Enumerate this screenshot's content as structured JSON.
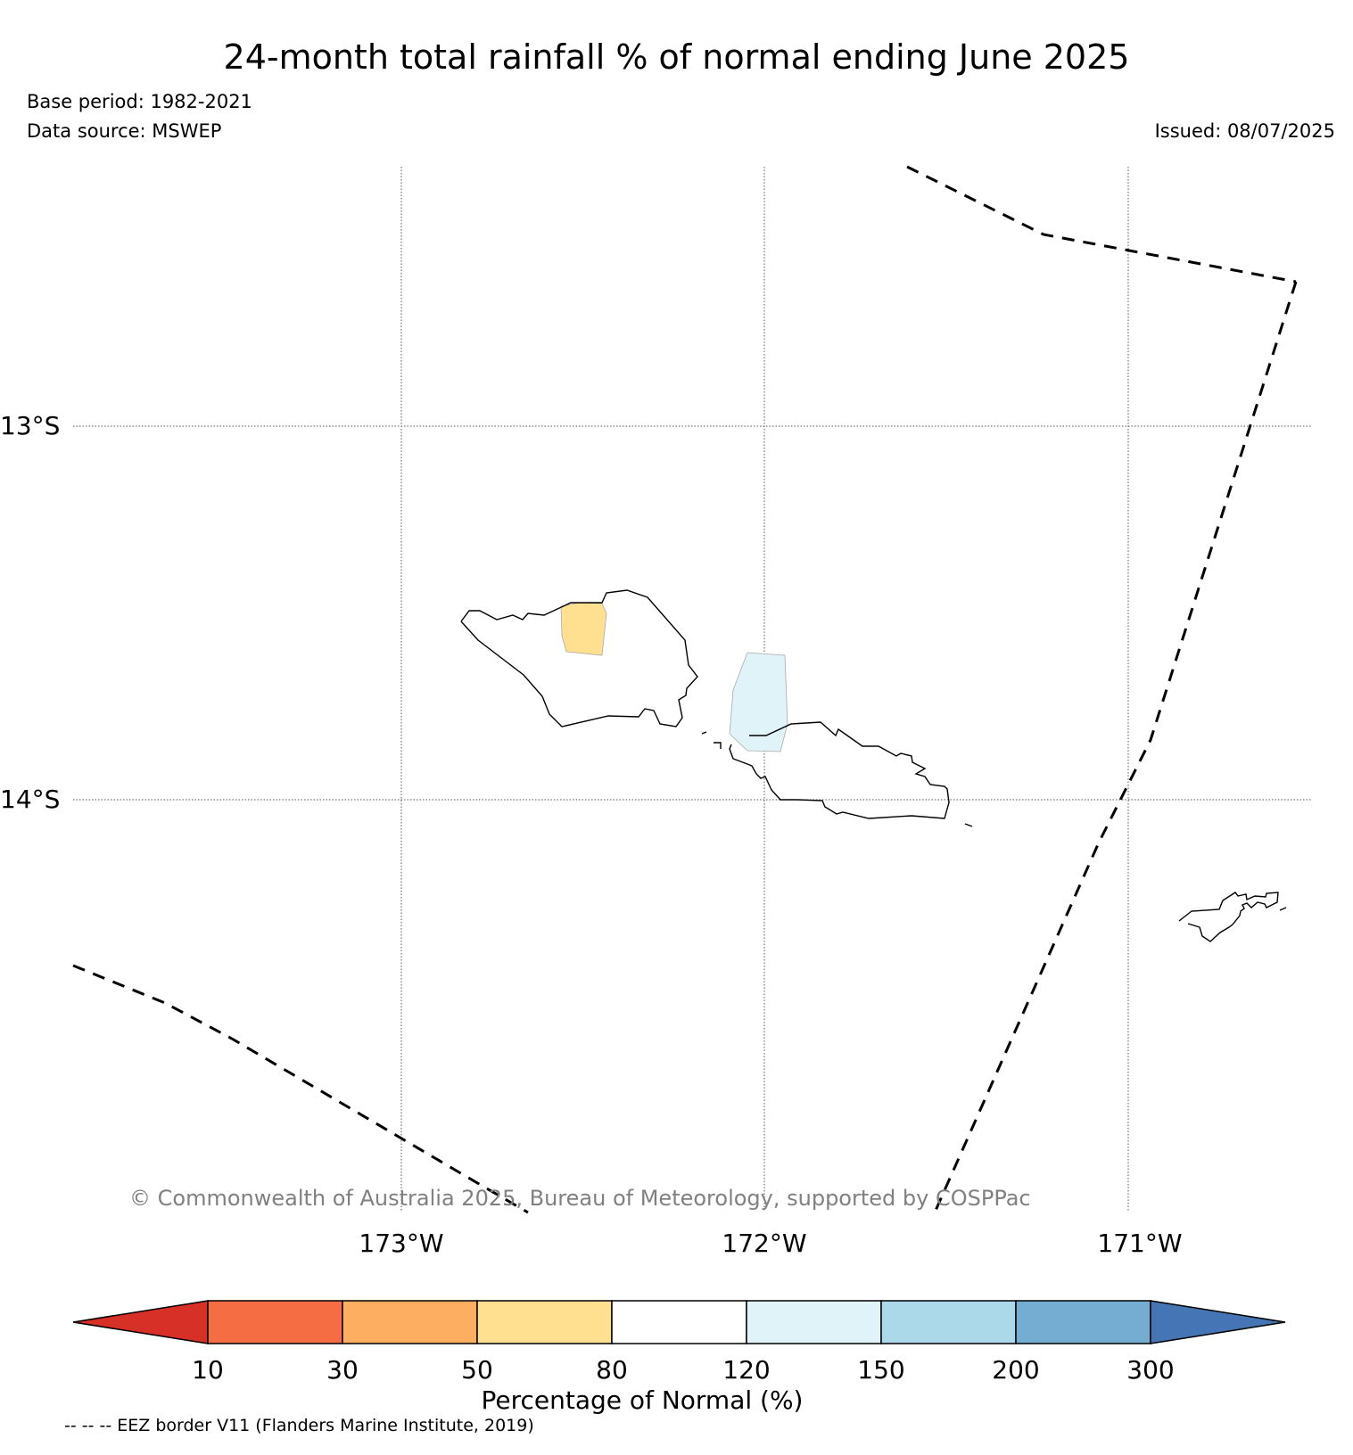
{
  "title": "24-month total rainfall % of normal ending June 2025",
  "base_period": "Base period: 1982-2021",
  "data_source": "Data source: MSWEP",
  "issued": "Issued: 08/07/2025",
  "copyright": "© Commonwealth of Australia 2025, Bureau of Meteorology, supported by COSPPac",
  "longitude_labels": [
    "173°W",
    "172°W",
    "171°W"
  ],
  "latitude_labels": [
    "13°S",
    "14°S"
  ],
  "colorbar": {
    "title": "Percentage of Normal (%)",
    "ticks": [
      "10",
      "30",
      "50",
      "80",
      "120",
      "150",
      "200",
      "300"
    ],
    "colors": [
      "#d73027",
      "#f46d43",
      "#fdae61",
      "#fee090",
      "#ffffff",
      "#e0f3f8",
      "#abd9e9",
      "#74add1",
      "#4575b4"
    ]
  },
  "legend_eez": "-- -- -- EEZ border V11 (Flanders Marine Institute, 2019)",
  "anomaly_cells": [
    {
      "island": "Savai'i",
      "category": "50-80"
    },
    {
      "island": "Upolu",
      "category": "120-150"
    }
  ]
}
